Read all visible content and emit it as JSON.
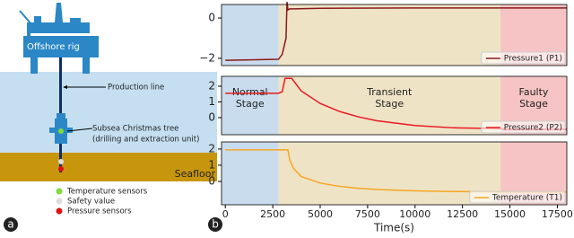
{
  "diagram": {
    "rig": "Offshore rig",
    "line": "Production line",
    "tree": "Subsea Christmas tree",
    "tree_sub": "(drilling and extraction unit)",
    "seafloor": "Seafloor",
    "legend": [
      "Temperature sensors",
      "Safety value",
      "Pressure sensors"
    ],
    "panel": "a"
  },
  "panel_b": "b",
  "chart_data": [
    {
      "type": "line",
      "xlim": [
        -200,
        18000
      ],
      "ylim": [
        -2.36,
        0.67
      ],
      "yticks": [
        0,
        {
          "value": -2,
          "label": "−2"
        }
      ],
      "spans": [
        {
          "start": -200,
          "end": 2800,
          "color": "#c9dced"
        },
        {
          "start": 2800,
          "end": 14500,
          "color": "#efe3c6"
        },
        {
          "start": 14500,
          "end": 18000,
          "color": "#f6c4c4"
        }
      ],
      "series": [
        {
          "name": "Pressure1 (P1)",
          "color": "#8b1a1a",
          "x": [
            0,
            2800,
            3000,
            3200,
            3250,
            3300,
            3400,
            3600,
            5000,
            10000,
            14500,
            18000
          ],
          "values": [
            -2.1,
            -2.05,
            -1.8,
            -1.0,
            0.8,
            0.4,
            0.45,
            0.45,
            0.48,
            0.5,
            0.5,
            0.5
          ]
        }
      ]
    },
    {
      "type": "line",
      "xlim": [
        -200,
        18000
      ],
      "ylim": [
        -1.09,
        2.63
      ],
      "yticks": [
        0,
        1,
        2
      ],
      "spans": [
        {
          "start": -200,
          "end": 2800,
          "color": "#c9dced",
          "label": [
            "Normal",
            "Stage"
          ]
        },
        {
          "start": 2800,
          "end": 14500,
          "color": "#efe3c6",
          "label": [
            "Transient",
            "Stage"
          ]
        },
        {
          "start": 14500,
          "end": 18000,
          "color": "#f6c4c4",
          "label": [
            "Faulty",
            "Stage"
          ]
        }
      ],
      "series": [
        {
          "name": "Pressure2 (P2)",
          "color": "#e8191f",
          "x": [
            0,
            2800,
            3000,
            3150,
            3250,
            3500,
            4000,
            5000,
            6000,
            7000,
            8000,
            10000,
            12000,
            14500,
            14600,
            18000
          ],
          "values": [
            1.55,
            1.55,
            1.65,
            2.5,
            2.5,
            2.5,
            1.7,
            0.9,
            0.4,
            0.05,
            -0.2,
            -0.5,
            -0.65,
            -0.7,
            -0.75,
            -0.75
          ]
        }
      ]
    },
    {
      "type": "line",
      "xlim": [
        -200,
        18000
      ],
      "ylim": [
        -1.44,
        2.44
      ],
      "yticks": [
        0,
        1,
        2
      ],
      "xticks": [
        0,
        2500,
        5000,
        7500,
        10000,
        12500,
        15000,
        17500
      ],
      "xlabel": "Time(s)",
      "spans": [
        {
          "start": -200,
          "end": 2800,
          "color": "#c9dced"
        },
        {
          "start": 2800,
          "end": 14500,
          "color": "#efe3c6"
        },
        {
          "start": 14500,
          "end": 18000,
          "color": "#f6c4c4"
        }
      ],
      "series": [
        {
          "name": "Temperature (T1)",
          "color": "#f5a623",
          "x": [
            0,
            3300,
            3400,
            3600,
            4000,
            5000,
            6000,
            7000,
            8000,
            10000,
            12000,
            14500,
            18000
          ],
          "values": [
            1.95,
            1.95,
            1.3,
            0.8,
            0.3,
            -0.1,
            -0.3,
            -0.42,
            -0.5,
            -0.58,
            -0.62,
            -0.65,
            -0.66
          ]
        }
      ]
    }
  ]
}
